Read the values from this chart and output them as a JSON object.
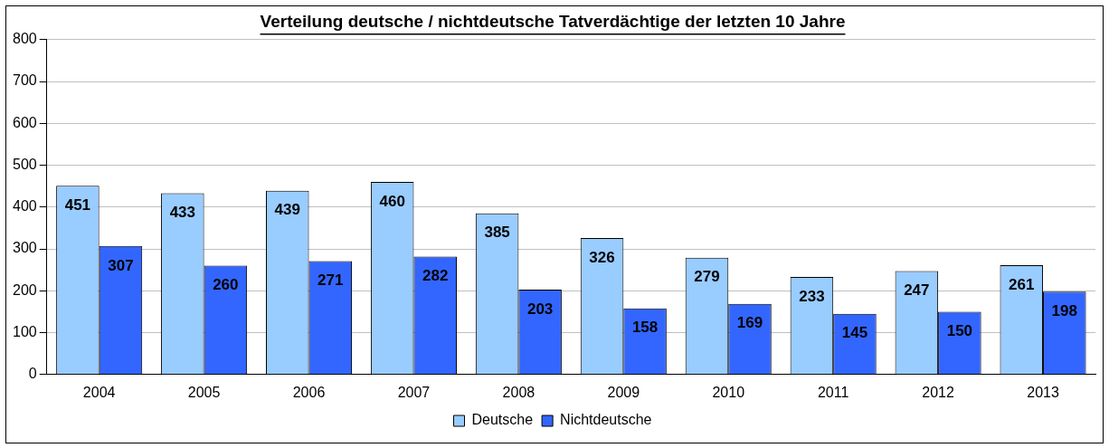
{
  "chart_data": {
    "type": "bar",
    "title": "Verteilung deutsche / nichtdeutsche Tatverdächtige der letzten 10 Jahre",
    "categories": [
      "2004",
      "2005",
      "2006",
      "2007",
      "2008",
      "2009",
      "2010",
      "2011",
      "2012",
      "2013"
    ],
    "series": [
      {
        "name": "Deutsche",
        "color": "#99ccff",
        "values": [
          451,
          433,
          439,
          460,
          385,
          326,
          279,
          233,
          247,
          261
        ]
      },
      {
        "name": "Nichtdeutsche",
        "color": "#3366ff",
        "values": [
          307,
          260,
          271,
          282,
          203,
          158,
          169,
          145,
          150,
          198
        ]
      }
    ],
    "ylim": [
      0,
      800
    ],
    "yticks": [
      0,
      100,
      200,
      300,
      400,
      500,
      600,
      700,
      800
    ],
    "grid": "y",
    "legend": "bottom",
    "data_labels": true
  }
}
